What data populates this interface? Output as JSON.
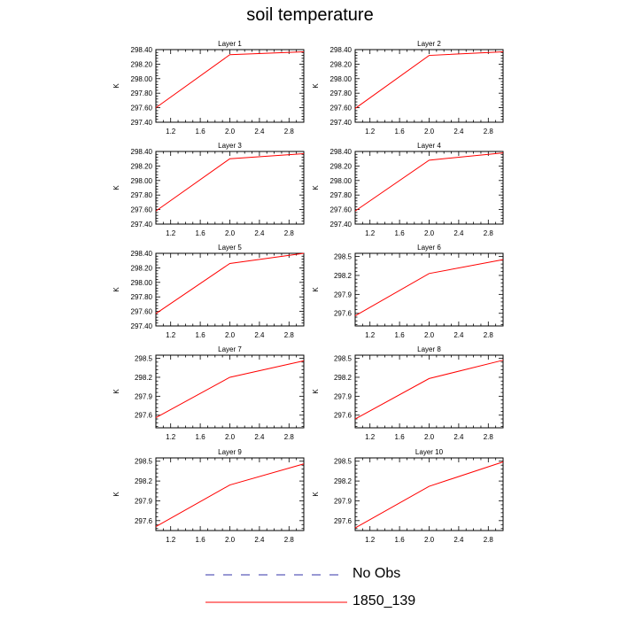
{
  "title": "soil temperature",
  "legend": [
    {
      "label": "No Obs",
      "color": "#3333aa",
      "dash": "dashed"
    },
    {
      "label": "1850_139",
      "color": "#ff0000",
      "dash": "solid"
    }
  ],
  "chart_data": [
    {
      "type": "line",
      "title": "Layer 1",
      "ylabel": "K",
      "xlim": [
        1.0,
        3.0
      ],
      "ylim": [
        297.4,
        298.4
      ],
      "xticks": [
        1.2,
        1.6,
        2.0,
        2.4,
        2.8
      ],
      "xticklabels": [
        "1.2",
        "1.6",
        "2.0",
        "2.4",
        "2.8"
      ],
      "yticks": [
        297.4,
        297.6,
        297.8,
        298.0,
        298.2,
        298.4
      ],
      "yticklabels": [
        "297.40",
        "297.60",
        "297.80",
        "298.00",
        "298.20",
        "298.40"
      ],
      "series": [
        {
          "name": "1850_139",
          "color": "#ff0000",
          "x": [
            1,
            2,
            3
          ],
          "y": [
            297.6,
            298.33,
            298.37
          ]
        }
      ]
    },
    {
      "type": "line",
      "title": "Layer 2",
      "ylabel": "K",
      "xlim": [
        1.0,
        3.0
      ],
      "ylim": [
        297.4,
        298.4
      ],
      "xticks": [
        1.2,
        1.6,
        2.0,
        2.4,
        2.8
      ],
      "xticklabels": [
        "1.2",
        "1.6",
        "2.0",
        "2.4",
        "2.8"
      ],
      "yticks": [
        297.4,
        297.6,
        297.8,
        298.0,
        298.2,
        298.4
      ],
      "yticklabels": [
        "297.40",
        "297.60",
        "297.80",
        "298.00",
        "298.20",
        "298.40"
      ],
      "series": [
        {
          "name": "1850_139",
          "color": "#ff0000",
          "x": [
            1,
            2,
            3
          ],
          "y": [
            297.59,
            298.32,
            298.37
          ]
        }
      ]
    },
    {
      "type": "line",
      "title": "Layer 3",
      "ylabel": "K",
      "xlim": [
        1.0,
        3.0
      ],
      "ylim": [
        297.4,
        298.4
      ],
      "xticks": [
        1.2,
        1.6,
        2.0,
        2.4,
        2.8
      ],
      "xticklabels": [
        "1.2",
        "1.6",
        "2.0",
        "2.4",
        "2.8"
      ],
      "yticks": [
        297.4,
        297.6,
        297.8,
        298.0,
        298.2,
        298.4
      ],
      "yticklabels": [
        "297.40",
        "297.60",
        "297.80",
        "298.00",
        "298.20",
        "298.40"
      ],
      "series": [
        {
          "name": "1850_139",
          "color": "#ff0000",
          "x": [
            1,
            2,
            3
          ],
          "y": [
            297.58,
            298.3,
            298.37
          ]
        }
      ]
    },
    {
      "type": "line",
      "title": "Layer 4",
      "ylabel": "K",
      "xlim": [
        1.0,
        3.0
      ],
      "ylim": [
        297.4,
        298.4
      ],
      "xticks": [
        1.2,
        1.6,
        2.0,
        2.4,
        2.8
      ],
      "xticklabels": [
        "1.2",
        "1.6",
        "2.0",
        "2.4",
        "2.8"
      ],
      "yticks": [
        297.4,
        297.6,
        297.8,
        298.0,
        298.2,
        298.4
      ],
      "yticklabels": [
        "297.40",
        "297.60",
        "297.80",
        "298.00",
        "298.20",
        "298.40"
      ],
      "series": [
        {
          "name": "1850_139",
          "color": "#ff0000",
          "x": [
            1,
            2,
            3
          ],
          "y": [
            297.58,
            298.28,
            298.38
          ]
        }
      ]
    },
    {
      "type": "line",
      "title": "Layer 5",
      "ylabel": "K",
      "xlim": [
        1.0,
        3.0
      ],
      "ylim": [
        297.4,
        298.4
      ],
      "xticks": [
        1.2,
        1.6,
        2.0,
        2.4,
        2.8
      ],
      "xticklabels": [
        "1.2",
        "1.6",
        "2.0",
        "2.4",
        "2.8"
      ],
      "yticks": [
        297.4,
        297.6,
        297.8,
        298.0,
        298.2,
        298.4
      ],
      "yticklabels": [
        "297.40",
        "297.60",
        "297.80",
        "298.00",
        "298.20",
        "298.40"
      ],
      "series": [
        {
          "name": "1850_139",
          "color": "#ff0000",
          "x": [
            1,
            2,
            3
          ],
          "y": [
            297.57,
            298.26,
            298.4
          ]
        }
      ]
    },
    {
      "type": "line",
      "title": "Layer 6",
      "ylabel": "K",
      "xlim": [
        1.0,
        3.0
      ],
      "ylim": [
        297.4,
        298.55
      ],
      "xticks": [
        1.2,
        1.6,
        2.0,
        2.4,
        2.8
      ],
      "xticklabels": [
        "1.2",
        "1.6",
        "2.0",
        "2.4",
        "2.8"
      ],
      "yticks": [
        297.6,
        297.9,
        298.2,
        298.5
      ],
      "yticklabels": [
        "297.6",
        "297.9",
        "298.2",
        "298.5"
      ],
      "series": [
        {
          "name": "1850_139",
          "color": "#ff0000",
          "x": [
            1,
            2,
            3
          ],
          "y": [
            297.56,
            298.23,
            298.45
          ]
        }
      ]
    },
    {
      "type": "line",
      "title": "Layer 7",
      "ylabel": "K",
      "xlim": [
        1.0,
        3.0
      ],
      "ylim": [
        297.4,
        298.55
      ],
      "xticks": [
        1.2,
        1.6,
        2.0,
        2.4,
        2.8
      ],
      "xticklabels": [
        "1.2",
        "1.6",
        "2.0",
        "2.4",
        "2.8"
      ],
      "yticks": [
        297.6,
        297.9,
        298.2,
        298.5
      ],
      "yticklabels": [
        "297.6",
        "297.9",
        "298.2",
        "298.5"
      ],
      "series": [
        {
          "name": "1850_139",
          "color": "#ff0000",
          "x": [
            1,
            2,
            3
          ],
          "y": [
            297.56,
            298.2,
            298.46
          ]
        }
      ]
    },
    {
      "type": "line",
      "title": "Layer 8",
      "ylabel": "K",
      "xlim": [
        1.0,
        3.0
      ],
      "ylim": [
        297.4,
        298.55
      ],
      "xticks": [
        1.2,
        1.6,
        2.0,
        2.4,
        2.8
      ],
      "xticklabels": [
        "1.2",
        "1.6",
        "2.0",
        "2.4",
        "2.8"
      ],
      "yticks": [
        297.6,
        297.9,
        298.2,
        298.5
      ],
      "yticklabels": [
        "297.6",
        "297.9",
        "298.2",
        "298.5"
      ],
      "series": [
        {
          "name": "1850_139",
          "color": "#ff0000",
          "x": [
            1,
            2,
            3
          ],
          "y": [
            297.54,
            298.18,
            298.47
          ]
        }
      ]
    },
    {
      "type": "line",
      "title": "Layer 9",
      "ylabel": "K",
      "xlim": [
        1.0,
        3.0
      ],
      "ylim": [
        297.45,
        298.55
      ],
      "xticks": [
        1.2,
        1.6,
        2.0,
        2.4,
        2.8
      ],
      "xticklabels": [
        "1.2",
        "1.6",
        "2.0",
        "2.4",
        "2.8"
      ],
      "yticks": [
        297.6,
        297.9,
        298.2,
        298.5
      ],
      "yticklabels": [
        "297.6",
        "297.9",
        "298.2",
        "298.5"
      ],
      "series": [
        {
          "name": "1850_139",
          "color": "#ff0000",
          "x": [
            1,
            2,
            3
          ],
          "y": [
            297.51,
            298.14,
            298.46
          ]
        }
      ]
    },
    {
      "type": "line",
      "title": "Layer 10",
      "ylabel": "K",
      "xlim": [
        1.0,
        3.0
      ],
      "ylim": [
        297.45,
        298.55
      ],
      "xticks": [
        1.2,
        1.6,
        2.0,
        2.4,
        2.8
      ],
      "xticklabels": [
        "1.2",
        "1.6",
        "2.0",
        "2.4",
        "2.8"
      ],
      "yticks": [
        297.6,
        297.9,
        298.2,
        298.5
      ],
      "yticklabels": [
        "297.6",
        "297.9",
        "298.2",
        "298.5"
      ],
      "series": [
        {
          "name": "1850_139",
          "color": "#ff0000",
          "x": [
            1,
            2,
            3
          ],
          "y": [
            297.49,
            298.12,
            298.49
          ]
        }
      ]
    }
  ]
}
